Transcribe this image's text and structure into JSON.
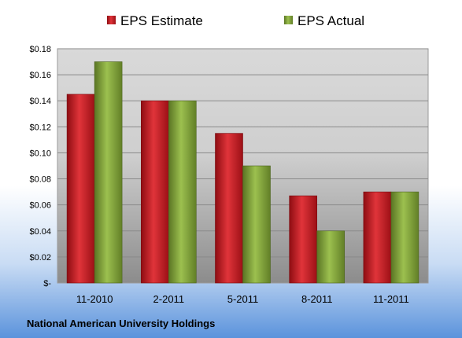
{
  "chart_data": {
    "type": "bar",
    "categories": [
      "11-2010",
      "2-2011",
      "5-2011",
      "8-2011",
      "11-2011"
    ],
    "series": [
      {
        "name": "EPS Estimate",
        "values": [
          0.145,
          0.14,
          0.115,
          0.067,
          0.07
        ],
        "color": "#c0141c"
      },
      {
        "name": "EPS Actual",
        "values": [
          0.17,
          0.14,
          0.09,
          0.04,
          0.07
        ],
        "color": "#7a9a33"
      }
    ],
    "yticks": [
      "$-",
      "$0.02",
      "$0.04",
      "$0.06",
      "$0.08",
      "$0.10",
      "$0.12",
      "$0.14",
      "$0.16",
      "$0.18"
    ],
    "ylim": [
      0,
      0.18
    ],
    "grid": true,
    "legend_position": "top",
    "footer": "National American University Holdings"
  }
}
